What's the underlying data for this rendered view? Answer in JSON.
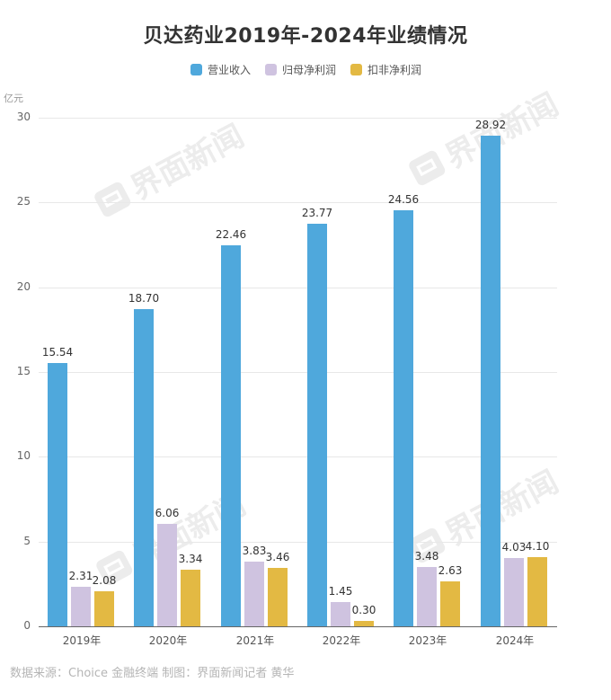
{
  "title": "贝达药业2019年-2024年业绩情况",
  "legend": [
    {
      "label": "营业收入",
      "color": "#4FA8DC"
    },
    {
      "label": "归母净利润",
      "color": "#CFC3E0"
    },
    {
      "label": "扣非净利润",
      "color": "#E3B943"
    }
  ],
  "y_axis": {
    "unit": "亿元",
    "ticks": [
      "30",
      "25",
      "20",
      "15",
      "10",
      "5",
      "0"
    ]
  },
  "x_axis": {
    "ticks": [
      "2019年",
      "2020年",
      "2021年",
      "2022年",
      "2023年",
      "2024年"
    ]
  },
  "watermark": "界面新闻",
  "source": "数据来源：Choice 金融终端 制图：界面新闻记者 黄华",
  "chart_data": {
    "type": "bar",
    "title": "贝达药业2019年-2024年业绩情况",
    "xlabel": "",
    "ylabel": "亿元",
    "ylim": [
      0,
      30
    ],
    "yticks": [
      0,
      5,
      10,
      15,
      20,
      25,
      30
    ],
    "grid": true,
    "legend_position": "top",
    "categories": [
      "2019年",
      "2020年",
      "2021年",
      "2022年",
      "2023年",
      "2024年"
    ],
    "series": [
      {
        "name": "营业收入",
        "color": "#4FA8DC",
        "values": [
          15.54,
          18.7,
          22.46,
          23.77,
          24.56,
          28.92
        ],
        "labels": [
          "15.54",
          "18.70",
          "22.46",
          "23.77",
          "24.56",
          "28.92"
        ]
      },
      {
        "name": "归母净利润",
        "color": "#CFC3E0",
        "values": [
          2.31,
          6.06,
          3.83,
          1.45,
          3.48,
          4.03
        ],
        "labels": [
          "2.31",
          "6.06",
          "3.83",
          "1.45",
          "3.48",
          "4.03"
        ]
      },
      {
        "name": "扣非净利润",
        "color": "#E3B943",
        "values": [
          2.08,
          3.34,
          3.46,
          0.3,
          2.63,
          4.1
        ],
        "labels": [
          "2.08",
          "3.34",
          "3.46",
          "0.30",
          "2.63",
          "4.10"
        ]
      }
    ],
    "source": "数据来源：Choice 金融终端 制图：界面新闻记者 黄华"
  }
}
